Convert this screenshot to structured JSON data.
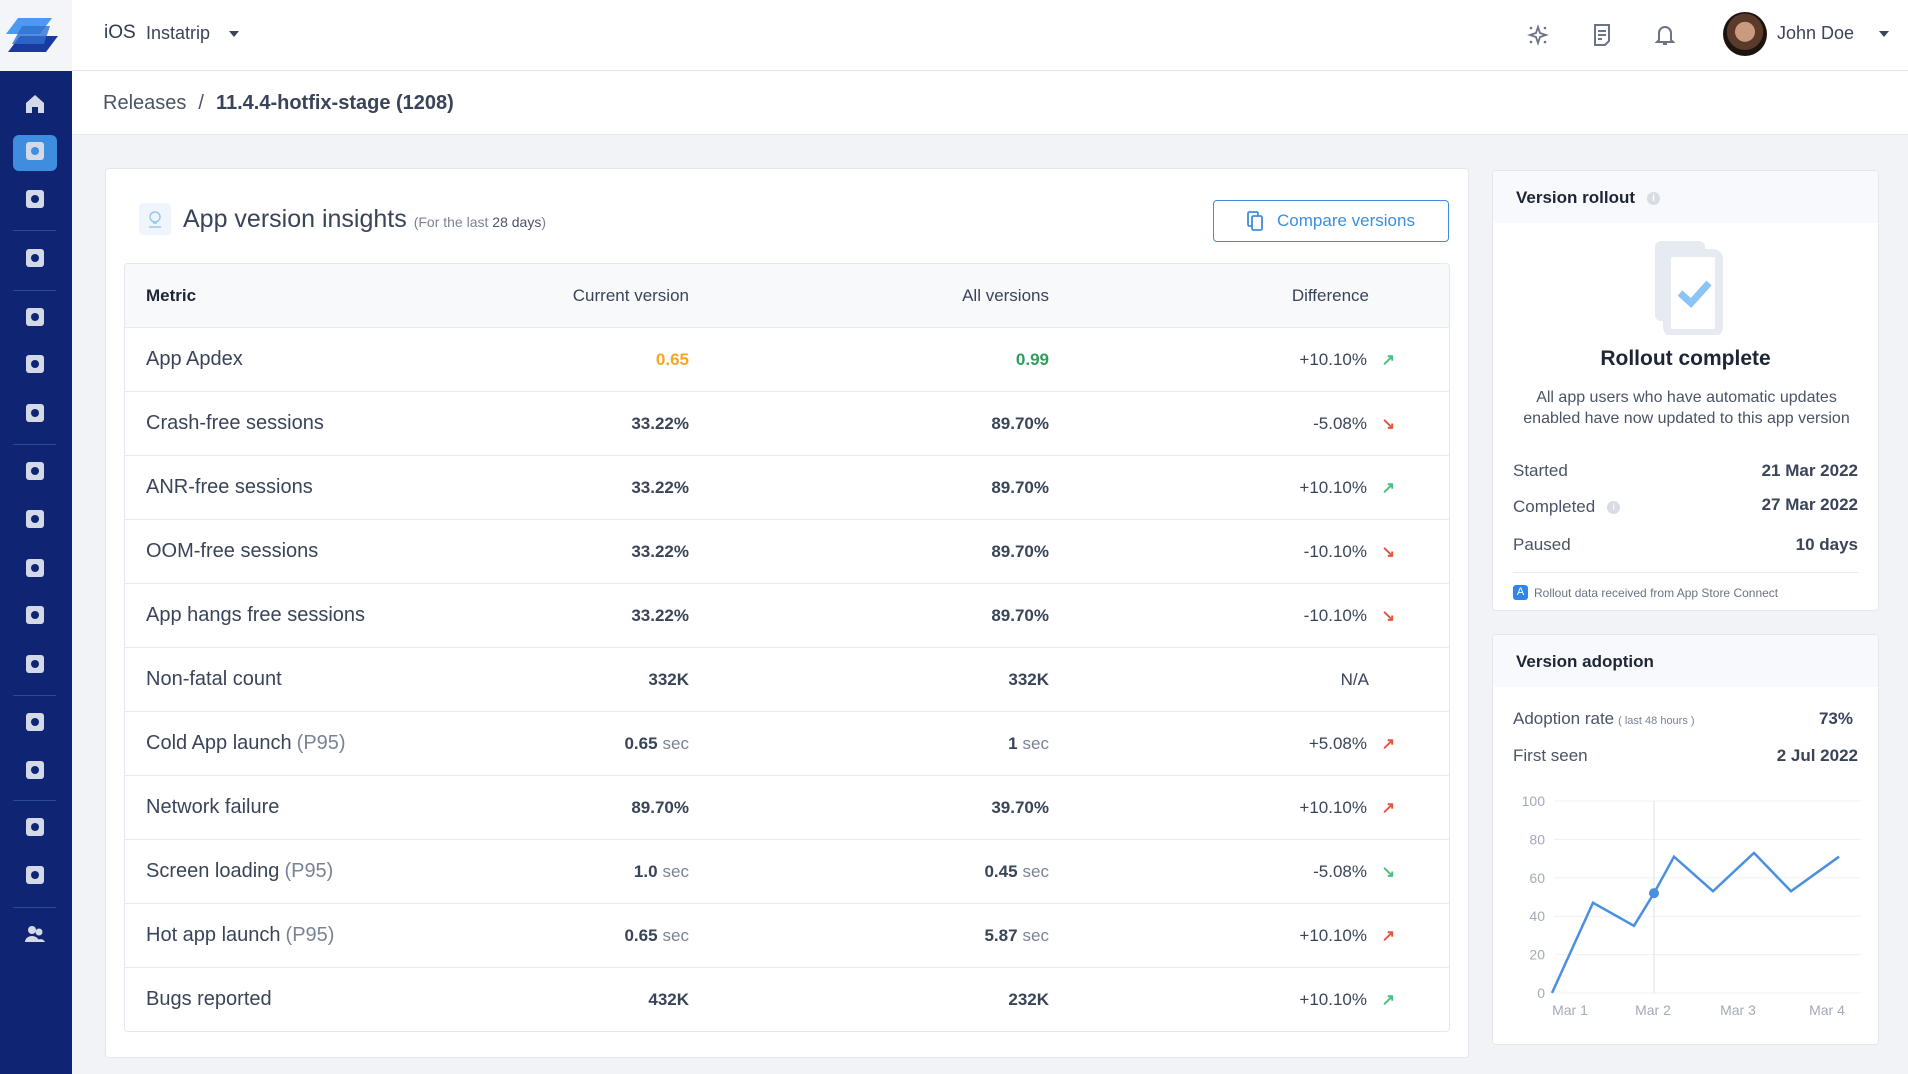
{
  "topbar": {
    "platform": "iOS",
    "app_name": "Instatrip",
    "user_name": "John Doe",
    "icons": [
      "sparkle-icon",
      "document-icon",
      "bell-icon"
    ]
  },
  "sidebar": {
    "items": [
      {
        "icon": "home-icon",
        "active": false
      },
      {
        "icon": "releases-icon",
        "active": true
      },
      {
        "icon": "versions-icon",
        "active": false
      },
      {
        "divider": true
      },
      {
        "icon": "bug-icon",
        "active": false
      },
      {
        "divider": true
      },
      {
        "icon": "crash-icon",
        "active": false
      },
      {
        "icon": "app-hang-icon",
        "active": false
      },
      {
        "icon": "oom-icon",
        "active": false
      },
      {
        "divider": true
      },
      {
        "icon": "apm-icon",
        "active": false
      },
      {
        "icon": "screen-loading-icon",
        "active": false
      },
      {
        "icon": "ui-hang-icon",
        "active": false
      },
      {
        "icon": "network-icon",
        "active": false
      },
      {
        "icon": "flows-icon",
        "active": false
      },
      {
        "divider": true
      },
      {
        "icon": "alerts-icon",
        "active": false
      },
      {
        "icon": "issues-icon",
        "active": false
      },
      {
        "divider": true
      },
      {
        "icon": "reviews-icon",
        "active": false
      },
      {
        "icon": "feature-requests-icon",
        "active": false
      },
      {
        "divider": true
      },
      {
        "icon": "team-icon",
        "active": false
      }
    ]
  },
  "breadcrumb": {
    "parent": "Releases",
    "separator": "/",
    "current": "11.4.4-hotfix-stage (1208)"
  },
  "insights": {
    "title": "App version insights",
    "subtitle_prefix": "(For the last",
    "subtitle_days": "28 days",
    "subtitle_suffix": ")",
    "compare_label": "Compare versions",
    "columns": [
      "Metric",
      "Current version",
      "All versions",
      "Difference"
    ],
    "rows": [
      {
        "metric": "App Apdex",
        "suffix": "",
        "current": "0.65",
        "current_unit": "",
        "current_color": "#f5a623",
        "all": "0.99",
        "all_unit": "",
        "all_color": "#2f9e5a",
        "diff": "+10.10%",
        "trend": "up",
        "trend_color": "#4cc07a"
      },
      {
        "metric": "Crash-free sessions",
        "suffix": "",
        "current": "33.22%",
        "current_unit": "",
        "all": "89.70%",
        "all_unit": "",
        "diff": "-5.08%",
        "trend": "down",
        "trend_color": "#e8553a"
      },
      {
        "metric": "ANR-free sessions",
        "suffix": "",
        "current": "33.22%",
        "current_unit": "",
        "all": "89.70%",
        "all_unit": "",
        "diff": "+10.10%",
        "trend": "up",
        "trend_color": "#4cc07a"
      },
      {
        "metric": "OOM-free sessions",
        "suffix": "",
        "current": "33.22%",
        "current_unit": "",
        "all": "89.70%",
        "all_unit": "",
        "diff": "-10.10%",
        "trend": "down",
        "trend_color": "#e8553a"
      },
      {
        "metric": "App hangs free sessions",
        "suffix": "",
        "current": "33.22%",
        "current_unit": "",
        "all": "89.70%",
        "all_unit": "",
        "diff": "-10.10%",
        "trend": "down",
        "trend_color": "#e8553a"
      },
      {
        "metric": "Non-fatal count",
        "suffix": "",
        "current": "332K",
        "current_unit": "",
        "all": "332K",
        "all_unit": "",
        "diff": "N/A",
        "trend": "",
        "trend_color": ""
      },
      {
        "metric": "Cold App launch",
        "suffix": "(P95)",
        "current": "0.65",
        "current_unit": "sec",
        "all": "1",
        "all_unit": "sec",
        "diff": "+5.08%",
        "trend": "up",
        "trend_color": "#e8553a"
      },
      {
        "metric": "Network failure",
        "suffix": "",
        "current": "89.70%",
        "current_unit": "",
        "all": "39.70%",
        "all_unit": "",
        "diff": "+10.10%",
        "trend": "up",
        "trend_color": "#e8553a"
      },
      {
        "metric": "Screen loading",
        "suffix": "(P95)",
        "current": "1.0",
        "current_unit": "sec",
        "all": "0.45",
        "all_unit": "sec",
        "diff": "-5.08%",
        "trend": "down",
        "trend_color": "#4cc07a"
      },
      {
        "metric": "Hot app launch",
        "suffix": "(P95)",
        "current": "0.65",
        "current_unit": "sec",
        "all": "5.87",
        "all_unit": "sec",
        "diff": "+10.10%",
        "trend": "up",
        "trend_color": "#e8553a"
      },
      {
        "metric": "Bugs reported",
        "suffix": "",
        "current": "432K",
        "current_unit": "",
        "all": "232K",
        "all_unit": "",
        "diff": "+10.10%",
        "trend": "up",
        "trend_color": "#4cc07a"
      }
    ]
  },
  "rollout": {
    "title": "Version rollout",
    "status": "Rollout complete",
    "description": "All app users who have automatic updates enabled have now updated to this app version",
    "started_label": "Started",
    "started": "21 Mar 2022",
    "completed_label": "Completed",
    "completed": "27 Mar 2022",
    "paused_label": "Paused",
    "paused": "10 days",
    "footer": "Rollout data received from App Store Connect"
  },
  "adoption": {
    "title": "Version adoption",
    "rate_label": "Adoption rate",
    "rate_hint": "( last 48 hours )",
    "rate": "73%",
    "first_seen_label": "First seen",
    "first_seen": "2 Jul 2022"
  },
  "chart_data": {
    "type": "line",
    "x_tick_labels": [
      "Mar 1",
      "Mar 2",
      "Mar 3",
      "Mar 4"
    ],
    "y_ticks": [
      0,
      20,
      40,
      60,
      80,
      100
    ],
    "ylim": [
      0,
      100
    ],
    "grid": true,
    "series": [
      {
        "values": [
          0,
          47,
          35,
          52,
          71,
          53,
          73,
          53,
          71
        ],
        "color": "#4a8fe0",
        "highlight_index": 3
      }
    ]
  },
  "colors": {
    "sidebar": "#0f2573",
    "accent": "#3e8ddf",
    "up_good": "#4cc07a",
    "bad": "#e8553a"
  }
}
